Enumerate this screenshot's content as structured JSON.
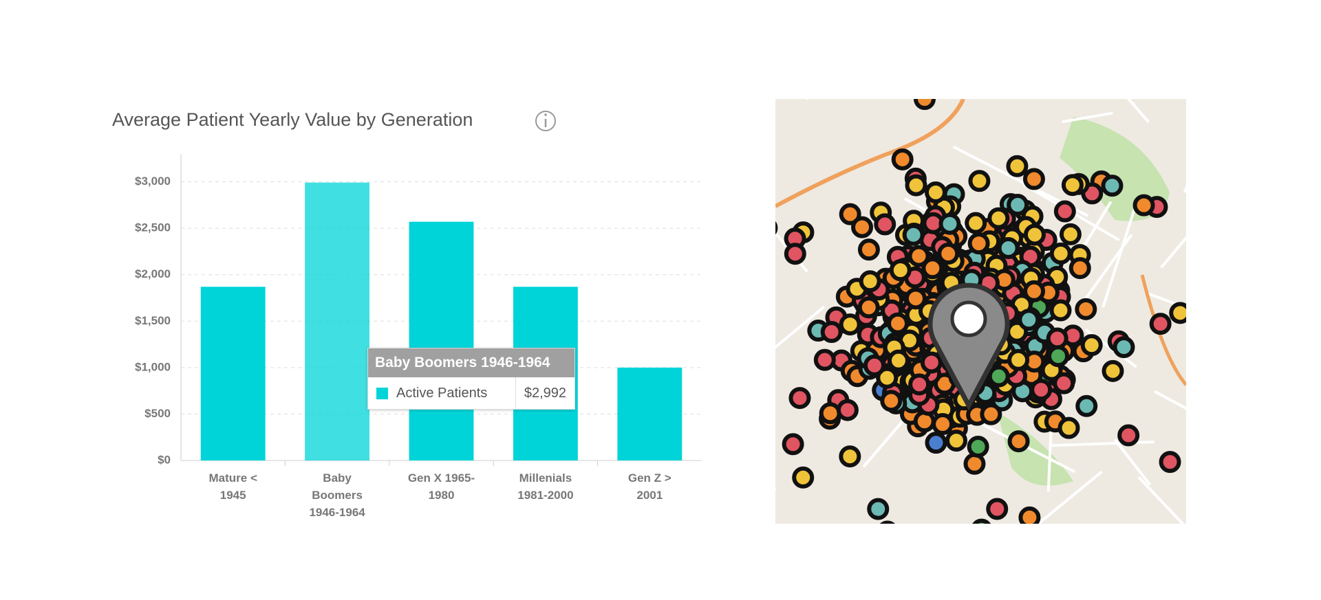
{
  "chart_data": {
    "type": "bar",
    "title": "Average Patient Yearly Value by Generation",
    "categories": [
      "Mature < 1945",
      "Baby Boomers 1946-1964",
      "Gen X 1965-1980",
      "Millenials 1981-2000",
      "Gen Z > 2001"
    ],
    "series": [
      {
        "name": "Active Patients",
        "color": "#00d4d8",
        "values": [
          1870,
          2992,
          2570,
          1870,
          1000
        ],
        "value_labels": [
          null,
          "$2,992",
          null,
          null,
          null
        ]
      }
    ],
    "tooltip_index": 1,
    "ylim": [
      0,
      3300
    ],
    "yticks": [
      {
        "value": 0,
        "label": "$0"
      },
      {
        "value": 500,
        "label": "$500"
      },
      {
        "value": 1000,
        "label": "$1,000"
      },
      {
        "value": 1500,
        "label": "$1,500"
      },
      {
        "value": 2000,
        "label": "$2,000"
      },
      {
        "value": 2500,
        "label": "$2,500"
      },
      {
        "value": 3000,
        "label": "$3,000"
      }
    ],
    "grid": true
  }
}
